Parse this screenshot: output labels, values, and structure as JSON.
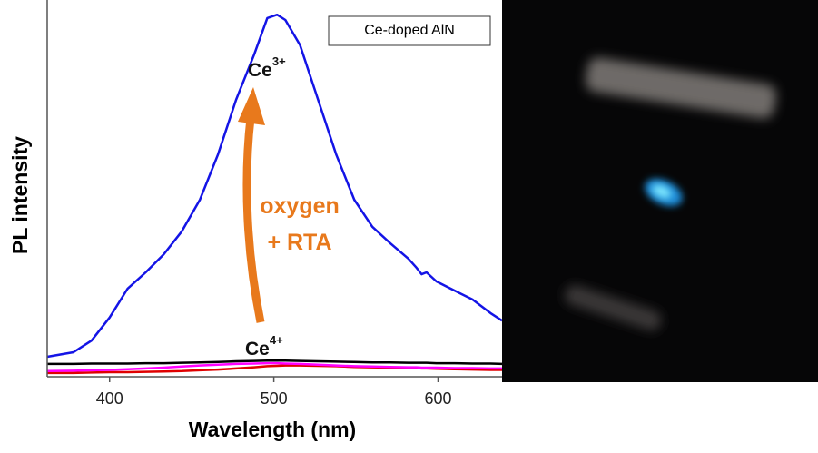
{
  "chart_data": {
    "type": "line",
    "x_label": "Wavelength (nm)",
    "y_label": "PL intensity",
    "legend_title": "Ce-doped AlN",
    "x": [
      362,
      378,
      389,
      400,
      411,
      422,
      433,
      444,
      455,
      466,
      477,
      488,
      496,
      502,
      507,
      516,
      527,
      538,
      549,
      560,
      571,
      582,
      587,
      590,
      593,
      599,
      610,
      621,
      632,
      639
    ],
    "series": [
      {
        "color": "#1414e6",
        "values": [
          5.3,
          6.5,
          9.6,
          15.7,
          23.4,
          27.7,
          32.5,
          38.6,
          47,
          59,
          73.5,
          85.5,
          95.2,
          96.1,
          94.7,
          88,
          73.5,
          59,
          47,
          39.8,
          35.4,
          31.3,
          28.9,
          27.2,
          27.7,
          25.3,
          22.9,
          20.5,
          16.9,
          14.9
        ]
      },
      {
        "color": "#000000",
        "values": [
          3.4,
          3.4,
          3.5,
          3.5,
          3.5,
          3.6,
          3.6,
          3.7,
          3.8,
          3.9,
          4.1,
          4.2,
          4.3,
          4.3,
          4.3,
          4.2,
          4.1,
          4,
          3.9,
          3.8,
          3.8,
          3.7,
          3.7,
          3.7,
          3.7,
          3.6,
          3.6,
          3.5,
          3.5,
          3.4
        ]
      },
      {
        "color": "#e00000",
        "values": [
          1,
          1,
          1.1,
          1.2,
          1.2,
          1.3,
          1.4,
          1.5,
          1.7,
          1.9,
          2.2,
          2.5,
          2.8,
          2.9,
          3,
          3,
          2.9,
          2.8,
          2.6,
          2.5,
          2.4,
          2.3,
          2.3,
          2.2,
          2.2,
          2.1,
          2,
          1.9,
          1.8,
          1.8
        ]
      },
      {
        "color": "#ff00ff",
        "values": [
          1.5,
          1.6,
          1.7,
          1.8,
          2,
          2.2,
          2.4,
          2.7,
          3,
          3.2,
          3.4,
          3.5,
          3.6,
          3.6,
          3.5,
          3.4,
          3.2,
          3,
          2.8,
          2.7,
          2.6,
          2.5,
          2.5,
          2.4,
          2.4,
          2.4,
          2.3,
          2.3,
          2.2,
          2.2
        ]
      }
    ],
    "xlim": [
      362,
      639
    ],
    "ylim": [
      0,
      100
    ],
    "xticks": [
      400,
      500,
      600
    ],
    "annotations": [
      {
        "text": "Ce",
        "sup": "3+"
      },
      {
        "text": "Ce",
        "sup": "4+"
      },
      {
        "text": "oxygen"
      },
      {
        "text": "+ RTA"
      }
    ]
  }
}
